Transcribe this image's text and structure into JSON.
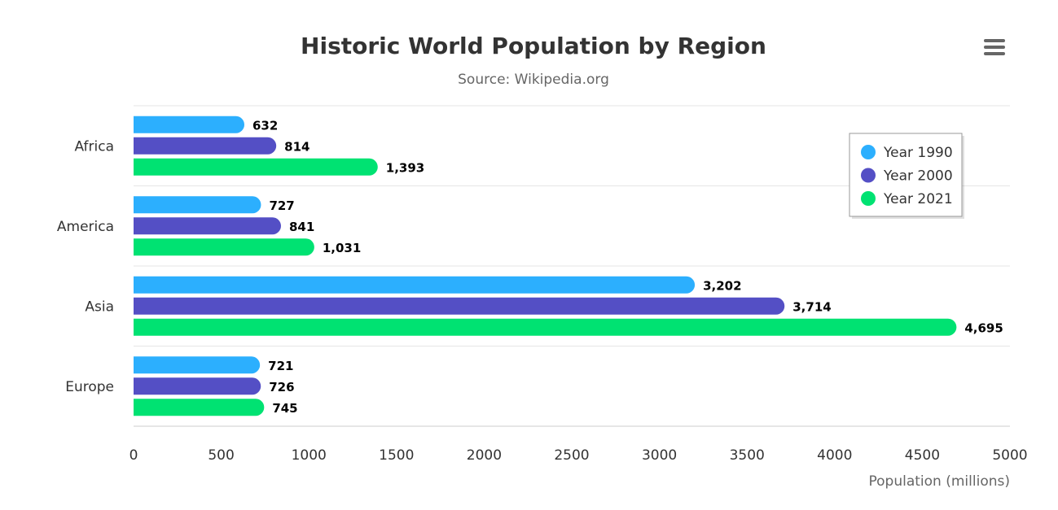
{
  "chart_data": {
    "type": "bar",
    "orientation": "horizontal",
    "title": "Historic World Population by Region",
    "subtitle": "Source: Wikipedia.org",
    "categories": [
      "Africa",
      "America",
      "Asia",
      "Europe"
    ],
    "series": [
      {
        "name": "Year 1990",
        "color": "#2caffe",
        "values": [
          632,
          727,
          3202,
          721
        ],
        "labels": [
          "632",
          "727",
          "3,202",
          "721"
        ]
      },
      {
        "name": "Year 2000",
        "color": "#544fc5",
        "values": [
          814,
          841,
          3714,
          726
        ],
        "labels": [
          "814",
          "841",
          "3,714",
          "726"
        ]
      },
      {
        "name": "Year 2021",
        "color": "#00e272",
        "values": [
          1393,
          1031,
          4695,
          745
        ],
        "labels": [
          "1,393",
          "1,031",
          "4,695",
          "745"
        ]
      }
    ],
    "xlabel": "Population (millions)",
    "ylabel": "",
    "xlim": [
      0,
      5000
    ],
    "xticks": [
      "0",
      "500",
      "1000",
      "1500",
      "2000",
      "2500",
      "3000",
      "3500",
      "4000",
      "4500",
      "5000"
    ],
    "grid": true,
    "legend_position": "top-right"
  },
  "menu": {
    "icon": "hamburger-menu-icon",
    "color": "#666666"
  }
}
